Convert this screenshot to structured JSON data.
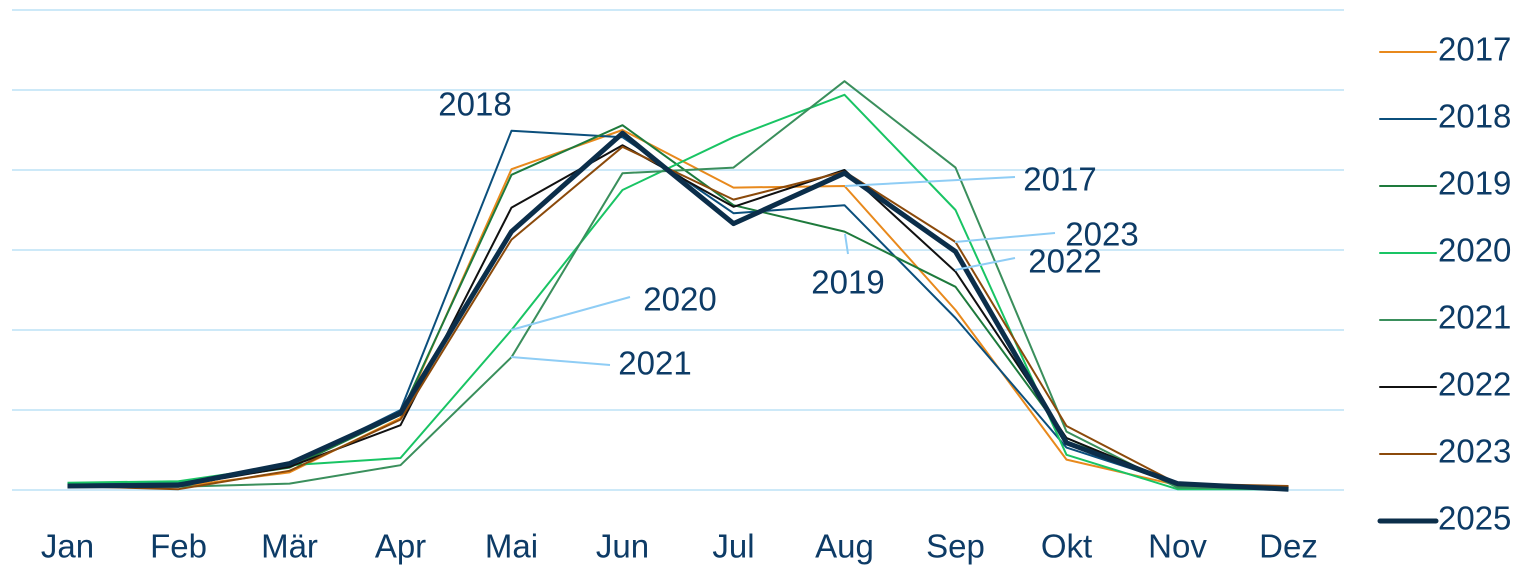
{
  "chart_data": {
    "type": "line",
    "categories": [
      "Jan",
      "Feb",
      "Mär",
      "Apr",
      "Mai",
      "Jun",
      "Jul",
      "Aug",
      "Sep",
      "Okt",
      "Nov",
      "Dez"
    ],
    "ylim": [
      0,
      6
    ],
    "yticks": [
      0,
      1,
      2,
      3,
      4,
      5,
      6
    ],
    "grid": true,
    "legend": "right",
    "series": [
      {
        "name": "2017",
        "color": "#e8891c",
        "line_width": 2,
        "values": [
          0.05,
          0.04,
          0.22,
          0.9,
          4.01,
          4.5,
          3.78,
          3.8,
          2.25,
          0.38,
          0.06,
          0.04
        ]
      },
      {
        "name": "2018",
        "color": "#0b4f7c",
        "line_width": 2,
        "values": [
          0.08,
          0.09,
          0.31,
          1.0,
          4.49,
          4.41,
          3.46,
          3.56,
          2.15,
          0.53,
          0.08,
          0.03
        ]
      },
      {
        "name": "2019",
        "color": "#1e7a3c",
        "line_width": 2,
        "values": [
          0.06,
          0.08,
          0.28,
          0.94,
          3.94,
          4.56,
          3.56,
          3.23,
          2.54,
          0.65,
          0.05,
          0.01
        ]
      },
      {
        "name": "2020",
        "color": "#19c464",
        "line_width": 2,
        "values": [
          0.09,
          0.11,
          0.31,
          0.4,
          2.0,
          3.75,
          4.41,
          4.94,
          3.5,
          0.44,
          0.01,
          0.01
        ]
      },
      {
        "name": "2021",
        "color": "#3a8f5c",
        "line_width": 2,
        "values": [
          0.05,
          0.04,
          0.08,
          0.31,
          1.66,
          3.96,
          4.03,
          5.11,
          4.03,
          0.73,
          0.03,
          0.01
        ]
      },
      {
        "name": "2022",
        "color": "#111111",
        "line_width": 2,
        "values": [
          0.05,
          0.05,
          0.29,
          0.81,
          3.53,
          4.31,
          3.54,
          4.0,
          2.73,
          0.65,
          0.08,
          0.03
        ]
      },
      {
        "name": "2023",
        "color": "#8b4a0b",
        "line_width": 2,
        "values": [
          0.05,
          0.01,
          0.24,
          0.88,
          3.13,
          4.29,
          3.63,
          3.98,
          3.1,
          0.8,
          0.08,
          0.05
        ]
      },
      {
        "name": "2025",
        "color": "#0b2e4a",
        "line_width": 5,
        "values": [
          0.05,
          0.06,
          0.33,
          0.96,
          3.23,
          4.46,
          3.33,
          3.96,
          2.98,
          0.59,
          0.08,
          0.01
        ]
      }
    ],
    "annotations": [
      "2018",
      "2017",
      "2023",
      "2022",
      "2019",
      "2020",
      "2021"
    ]
  }
}
